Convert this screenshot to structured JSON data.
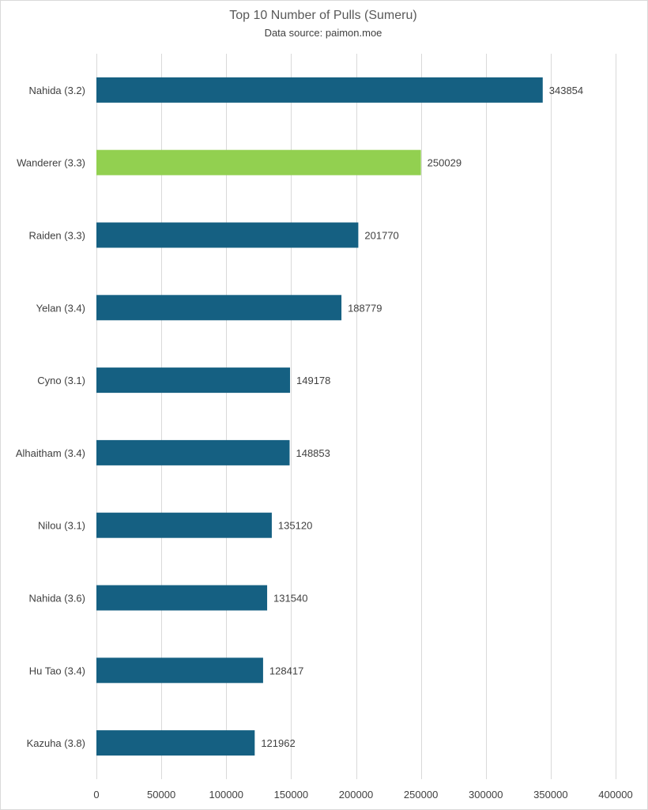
{
  "chart_data": {
    "type": "bar",
    "orientation": "horizontal",
    "title": "Top 10 Number of Pulls (Sumeru)",
    "subtitle": "Data source: paimon.moe",
    "categories": [
      "Nahida (3.2)",
      "Wanderer (3.3)",
      "Raiden (3.3)",
      "Yelan (3.4)",
      "Cyno (3.1)",
      "Alhaitham (3.4)",
      "Nilou (3.1)",
      "Nahida (3.6)",
      "Hu Tao (3.4)",
      "Kazuha (3.8)"
    ],
    "values": [
      343854,
      250029,
      201770,
      188779,
      149178,
      148853,
      135120,
      131540,
      128417,
      121962
    ],
    "data_labels": [
      "343854",
      "250029",
      "201770",
      "188779",
      "149178",
      "148853",
      "135120",
      "131540",
      "128417",
      "121962"
    ],
    "colors": [
      "#156082",
      "#92d050",
      "#156082",
      "#156082",
      "#156082",
      "#156082",
      "#156082",
      "#156082",
      "#156082",
      "#156082"
    ],
    "xlim": [
      0,
      400000
    ],
    "x_ticks": [
      0,
      50000,
      100000,
      150000,
      200000,
      250000,
      300000,
      350000,
      400000
    ],
    "x_tick_labels": [
      "0",
      "50000",
      "100000",
      "150000",
      "200000",
      "250000",
      "300000",
      "350000",
      "400000"
    ],
    "xlabel": "",
    "ylabel": "",
    "grid": "vertical",
    "legend": "none"
  }
}
